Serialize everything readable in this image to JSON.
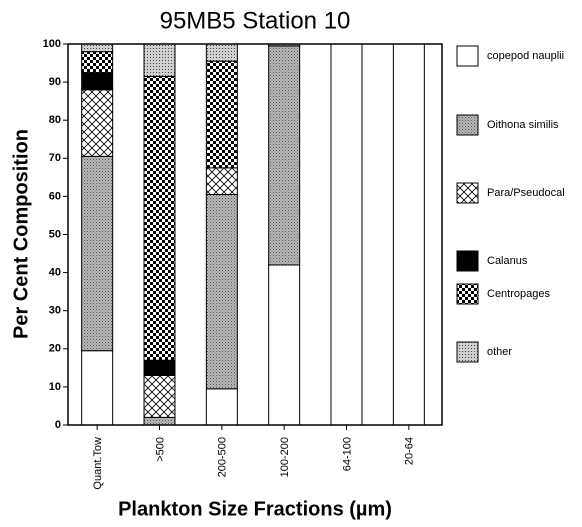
{
  "chart_data": {
    "type": "stacked_bar",
    "title": "95MB5 Station 10",
    "xlabel": "Plankton Size Fractions (µm)",
    "ylabel": "Per Cent Composition",
    "categories": [
      "Quant.Tow",
      ">500",
      "200-500",
      "100-200",
      "64-100",
      "20-64"
    ],
    "series": [
      {
        "name": "copepod nauplii",
        "color": "#ffffff",
        "values": [
          19.5,
          0,
          9.5,
          42,
          100,
          100
        ]
      },
      {
        "name": "Oithona similis",
        "color": "#b8b8b8",
        "values": [
          51,
          2,
          51,
          57.5,
          0,
          0
        ]
      },
      {
        "name": "Para/Pseudocal",
        "color": "#ffffff",
        "values": [
          17.5,
          11,
          7,
          0,
          0,
          0
        ]
      },
      {
        "name": "Calanus",
        "color": "#000000",
        "values": [
          4.5,
          4,
          0,
          0,
          0,
          0
        ]
      },
      {
        "name": "Centropages",
        "color": "#ffffff",
        "values": [
          5.5,
          74.5,
          28,
          0,
          0,
          0
        ]
      },
      {
        "name": "other",
        "color": "#d0d0d0",
        "values": [
          2,
          8.5,
          4.5,
          0.5,
          0,
          0
        ]
      }
    ],
    "ylim": [
      0,
      100
    ],
    "yticks": [
      0,
      10,
      20,
      30,
      40,
      50,
      60,
      70,
      80,
      90,
      100
    ]
  }
}
